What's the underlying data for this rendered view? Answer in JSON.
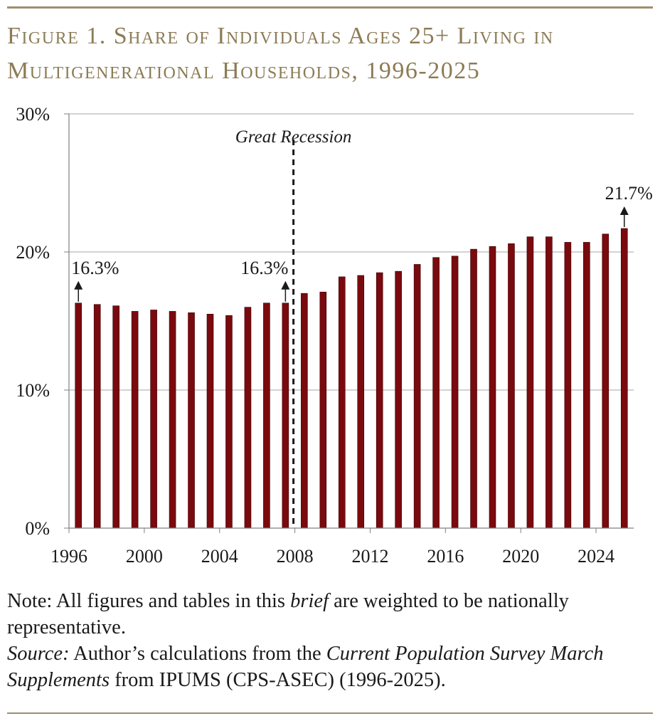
{
  "figure": {
    "title_line1": "Figure 1. Share of Individuals Ages 25+ Living in",
    "title_line2": "Multigenerational Households, 1996-2025"
  },
  "chart_data": {
    "type": "bar",
    "categories": [
      "1996",
      "1997",
      "1998",
      "1999",
      "2000",
      "2001",
      "2002",
      "2003",
      "2004",
      "2005",
      "2006",
      "2007",
      "2008",
      "2009",
      "2010",
      "2011",
      "2012",
      "2013",
      "2014",
      "2015",
      "2016",
      "2017",
      "2018",
      "2019",
      "2020",
      "2021",
      "2022",
      "2023",
      "2024",
      "2025"
    ],
    "values": [
      16.3,
      16.2,
      16.1,
      15.7,
      15.8,
      15.7,
      15.6,
      15.5,
      15.4,
      16.0,
      16.3,
      16.3,
      17.0,
      17.1,
      18.2,
      18.3,
      18.5,
      18.6,
      19.1,
      19.6,
      19.7,
      20.2,
      20.4,
      20.6,
      21.1,
      21.1,
      20.7,
      20.7,
      21.3,
      21.7
    ],
    "x_tick_labels": [
      "1996",
      "2000",
      "2004",
      "2008",
      "2012",
      "2016",
      "2020",
      "2024"
    ],
    "y_tick_labels": [
      "0%",
      "10%",
      "20%",
      "30%"
    ],
    "ylim": [
      0,
      30
    ],
    "y_unit": "%",
    "grid": true,
    "bar_color": "#7a0a0e",
    "annotations": [
      {
        "year": "1996",
        "label": "16.3%"
      },
      {
        "year": "2007",
        "label": "16.3%"
      },
      {
        "year": "2025",
        "label": "21.7%"
      }
    ],
    "marker": {
      "between": [
        "2007",
        "2008"
      ],
      "label": "Great Recession"
    }
  },
  "notes": {
    "note_prefix": "Note: All figures and tables in this ",
    "note_emph": "brief",
    "note_suffix": " are weighted to be nationally representative.",
    "source_label": "Source:",
    "source_text1": " Author’s calculations from the ",
    "source_emph": "Current Population Survey March Supplements",
    "source_text2": " from IPUMS (CPS-ASEC) (1996-2025)."
  },
  "colors": {
    "accent": "#8c7b55",
    "rule": "#9c8f6e",
    "bar": "#7a0a0e"
  }
}
